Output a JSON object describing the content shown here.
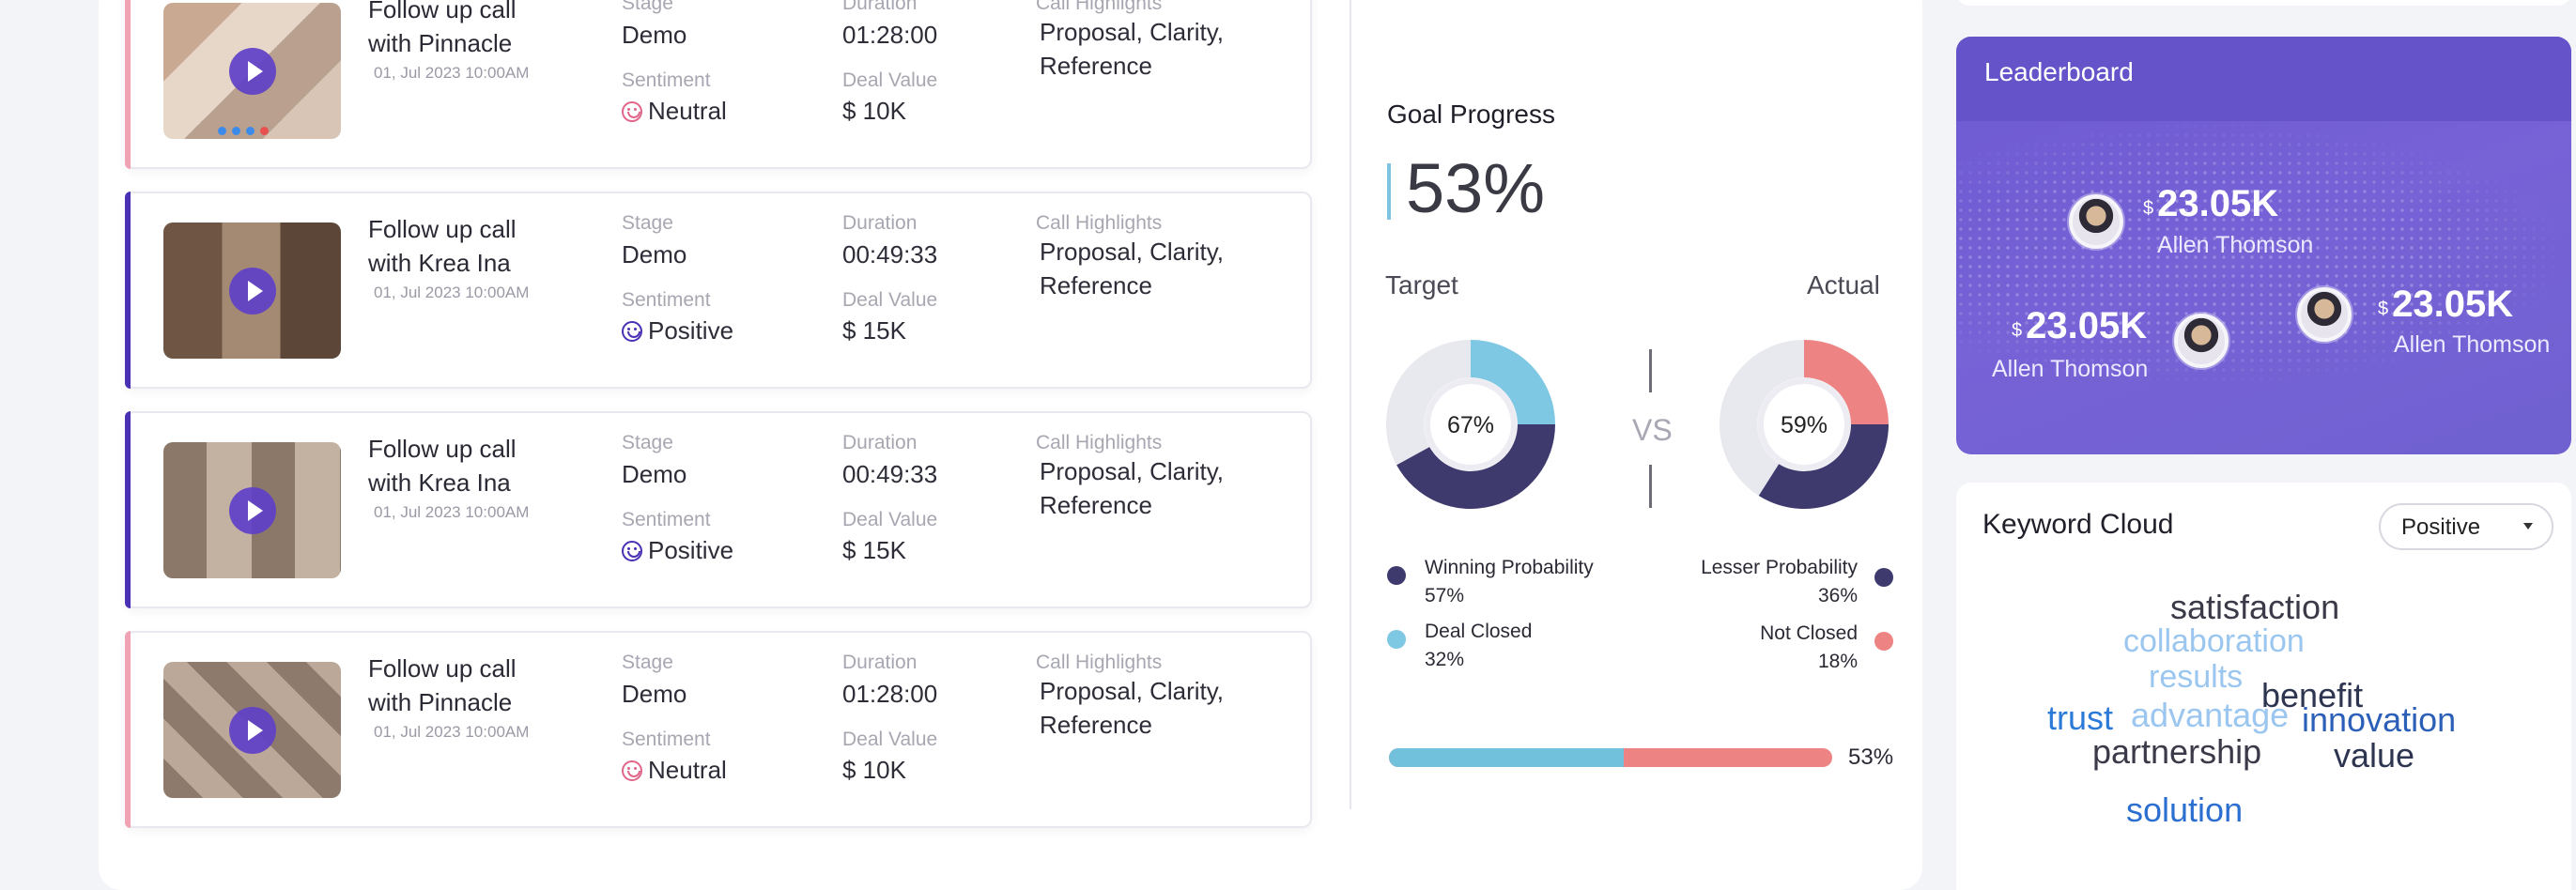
{
  "calls": [
    {
      "title": "Follow up call with Pinnacle",
      "date": "01, Jul 2023  10:00AM",
      "stage_label": "Stage",
      "stage": "Demo",
      "duration_label": "Duration",
      "duration": "01:28:00",
      "highlights_label": "Call Highlights",
      "highlights": "Proposal, Clarity, Reference",
      "sentiment_label": "Sentiment",
      "sentiment": "Neutral",
      "deal_label": "Deal Value",
      "deal": "$ 10K",
      "accent": "#f0a3b4"
    },
    {
      "title": "Follow up call with Krea Ina",
      "date": "01, Jul 2023  10:00AM",
      "stage_label": "Stage",
      "stage": "Demo",
      "duration_label": "Duration",
      "duration": "00:49:33",
      "highlights_label": "Call Highlights",
      "highlights": "Proposal, Clarity, Reference",
      "sentiment_label": "Sentiment",
      "sentiment": "Positive",
      "deal_label": "Deal Value",
      "deal": "$ 15K",
      "accent": "#4a30b5"
    },
    {
      "title": "Follow up call with Krea Ina",
      "date": "01, Jul 2023  10:00AM",
      "stage_label": "Stage",
      "stage": "Demo",
      "duration_label": "Duration",
      "duration": "00:49:33",
      "highlights_label": "Call Highlights",
      "highlights": "Proposal, Clarity, Reference",
      "sentiment_label": "Sentiment",
      "sentiment": "Positive",
      "deal_label": "Deal Value",
      "deal": "$ 15K",
      "accent": "#4a30b5"
    },
    {
      "title": "Follow up call with Pinnacle",
      "date": "01, Jul 2023  10:00AM",
      "stage_label": "Stage",
      "stage": "Demo",
      "duration_label": "Duration",
      "duration": "01:28:00",
      "highlights_label": "Call Highlights",
      "highlights": "Proposal, Clarity, Reference",
      "sentiment_label": "Sentiment",
      "sentiment": "Neutral",
      "deal_label": "Deal Value",
      "deal": "$ 10K",
      "accent": "#f0a3b4"
    }
  ],
  "sentiment_colors": {
    "Neutral": "#e0668a",
    "Positive": "#4a30b5"
  },
  "goal": {
    "title": "Goal Progress",
    "percent_text": "53%",
    "target_label": "Target",
    "actual_label": "Actual",
    "vs": "VS",
    "target_donut": {
      "text": "67%",
      "light_pct": 25,
      "dark_pct": 42,
      "light_color": "#7ec8e3",
      "dark_color": "#3e3a6e"
    },
    "actual_donut": {
      "text": "59%",
      "light_pct": 25,
      "dark_pct": 34,
      "light_color": "#ee8383",
      "dark_color": "#3e3a6e"
    },
    "legend": {
      "winning_label": "Winning Probability",
      "winning_value": "57%",
      "deal_closed_label": "Deal Closed",
      "deal_closed_value": "32%",
      "lesser_label": "Lesser Probability",
      "lesser_value": "36%",
      "not_closed_label": "Not Closed",
      "not_closed_value": "18%"
    },
    "progress": {
      "fill": 0.53,
      "label": "53%"
    }
  },
  "leaderboard": {
    "title": "Leaderboard",
    "entries": [
      {
        "currency": "$",
        "amount": "23.05K",
        "name": "Allen Thomson"
      },
      {
        "currency": "$",
        "amount": "23.05K",
        "name": "Allen Thomson"
      },
      {
        "currency": "$",
        "amount": "23.05K",
        "name": "Allen Thomson"
      }
    ]
  },
  "keywords": {
    "title": "Keyword Cloud",
    "filter": "Positive",
    "words": [
      {
        "text": "satisfaction",
        "color": "#3a3a48"
      },
      {
        "text": "collaboration",
        "color": "#9bc6ef"
      },
      {
        "text": "results",
        "color": "#9bc6ef"
      },
      {
        "text": "benefit",
        "color": "#2e3550"
      },
      {
        "text": "trust",
        "color": "#2b7ad8"
      },
      {
        "text": "advantage",
        "color": "#9bc6ef"
      },
      {
        "text": "innovation",
        "color": "#2b5fb8"
      },
      {
        "text": "partnership",
        "color": "#3a3a48"
      },
      {
        "text": "value",
        "color": "#2e3550"
      },
      {
        "text": "solution",
        "color": "#2b6fd0"
      }
    ]
  }
}
